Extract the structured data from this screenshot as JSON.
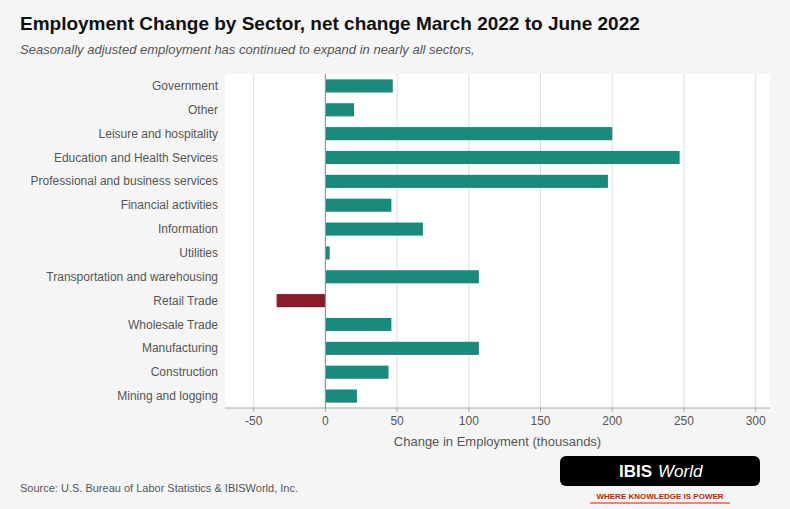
{
  "chart_data": {
    "type": "bar",
    "orientation": "horizontal",
    "title": "Employment Change by Sector, net change March 2022 to June 2022",
    "subtitle": "Seasonally adjusted employment has continued to expand in nearly all sectors,",
    "xlabel": "Change in Employment (thousands)",
    "source": "Source: U.S. Bureau of Labor Statistics & IBISWorld, Inc.",
    "annotations": [
      "IBIS",
      "World",
      "WHERE KNOWLEDGE IS POWER"
    ],
    "categories": [
      "Government",
      "Other",
      "Leisure and hospitality",
      "Education and Health Services",
      "Professional and business services",
      "Financial activities",
      "Information",
      "Utilities",
      "Transportation and warehousing",
      "Retail Trade",
      "Wholesale Trade",
      "Manufacturing",
      "Construction",
      "Mining and logging"
    ],
    "values": [
      47,
      20,
      200,
      247,
      197,
      46,
      68,
      3,
      107,
      -34,
      46,
      107,
      44,
      22
    ],
    "colors": [
      "#1a8a7a",
      "#1a8a7a",
      "#1a8a7a",
      "#1a8a7a",
      "#1a8a7a",
      "#1a8a7a",
      "#1a8a7a",
      "#1a8a7a",
      "#1a8a7a",
      "#8b1a2a",
      "#1a8a7a",
      "#1a8a7a",
      "#1a8a7a",
      "#1a8a7a"
    ],
    "xlim": [
      -70,
      310
    ],
    "xticks": [
      -50,
      0,
      50,
      100,
      150,
      200,
      250,
      300
    ],
    "grid": true
  }
}
